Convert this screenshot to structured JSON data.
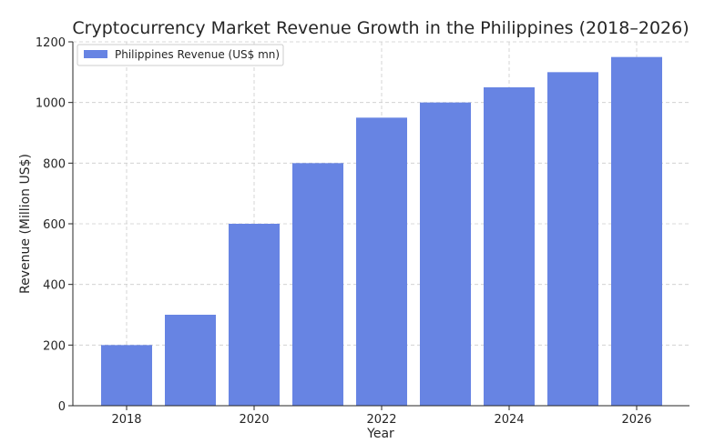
{
  "chart_data": {
    "type": "bar",
    "title": "Cryptocurrency Market Revenue Growth in the Philippines (2018–2026)",
    "xlabel": "Year",
    "ylabel": "Revenue (Million US$)",
    "categories": [
      "2018",
      "2019",
      "2020",
      "2021",
      "2022",
      "2023",
      "2024",
      "2025",
      "2026"
    ],
    "series": [
      {
        "name": "Philippines Revenue (US$ mn)",
        "values": [
          200,
          300,
          600,
          800,
          950,
          1000,
          1050,
          1100,
          1150
        ],
        "color": "#6784e3"
      }
    ],
    "x_tick_labels": [
      "2018",
      "2020",
      "2022",
      "2024",
      "2026"
    ],
    "y_ticks": [
      0,
      200,
      400,
      600,
      800,
      1000,
      1200
    ],
    "ylim": [
      0,
      1200
    ],
    "grid": true,
    "legend_position": "top-left"
  }
}
